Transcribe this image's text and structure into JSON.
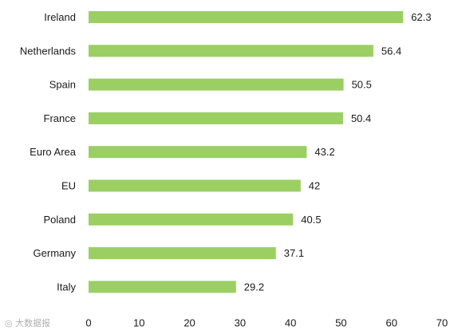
{
  "chart_data": {
    "type": "bar",
    "orientation": "horizontal",
    "categories": [
      "Ireland",
      "Netherlands",
      "Spain",
      "France",
      "Euro Area",
      "EU",
      "Poland",
      "Germany",
      "Italy"
    ],
    "values": [
      62.3,
      56.4,
      50.5,
      50.4,
      43.2,
      42,
      40.5,
      37.1,
      29.2
    ],
    "value_labels": [
      "62.3",
      "56.4",
      "50.5",
      "50.4",
      "43.2",
      "42",
      "40.5",
      "37.1",
      "29.2"
    ],
    "xlim": [
      0,
      70
    ],
    "xticks": [
      0,
      10,
      20,
      30,
      40,
      50,
      60,
      70
    ],
    "grid": false,
    "bar_color": "#9bcf64"
  },
  "watermark": {
    "text": "大数据报"
  }
}
